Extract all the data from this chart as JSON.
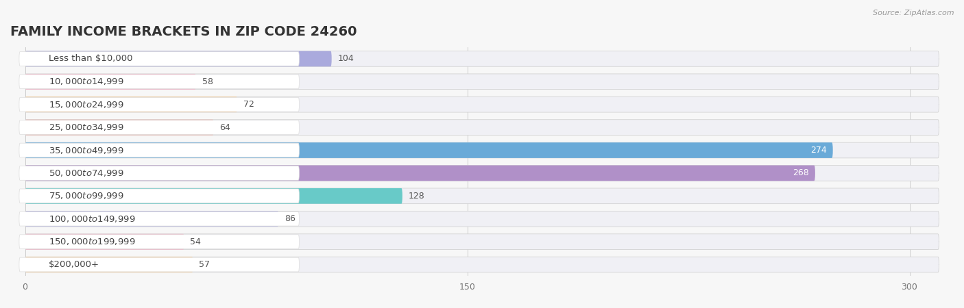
{
  "title": "FAMILY INCOME BRACKETS IN ZIP CODE 24260",
  "source": "Source: ZipAtlas.com",
  "categories": [
    "Less than $10,000",
    "$10,000 to $14,999",
    "$15,000 to $24,999",
    "$25,000 to $34,999",
    "$35,000 to $49,999",
    "$50,000 to $74,999",
    "$75,000 to $99,999",
    "$100,000 to $149,999",
    "$150,000 to $199,999",
    "$200,000+"
  ],
  "values": [
    104,
    58,
    72,
    64,
    274,
    268,
    128,
    86,
    54,
    57
  ],
  "bar_colors": [
    "#aaaadd",
    "#f4afc4",
    "#f8c98e",
    "#eeaaa0",
    "#6aaad8",
    "#b090c8",
    "#68cac8",
    "#b0b0e0",
    "#f4afc4",
    "#f8c98e"
  ],
  "row_bg_color": "#e8e8f0",
  "bar_bg_color": "#f0f0f8",
  "xlim": [
    0,
    310
  ],
  "xticks": [
    0,
    150,
    300
  ],
  "background_color": "#f7f7f7",
  "title_fontsize": 14,
  "label_fontsize": 9.5,
  "value_fontsize": 9,
  "bar_height": 0.68,
  "label_inside_threshold": 150,
  "max_data": 300
}
